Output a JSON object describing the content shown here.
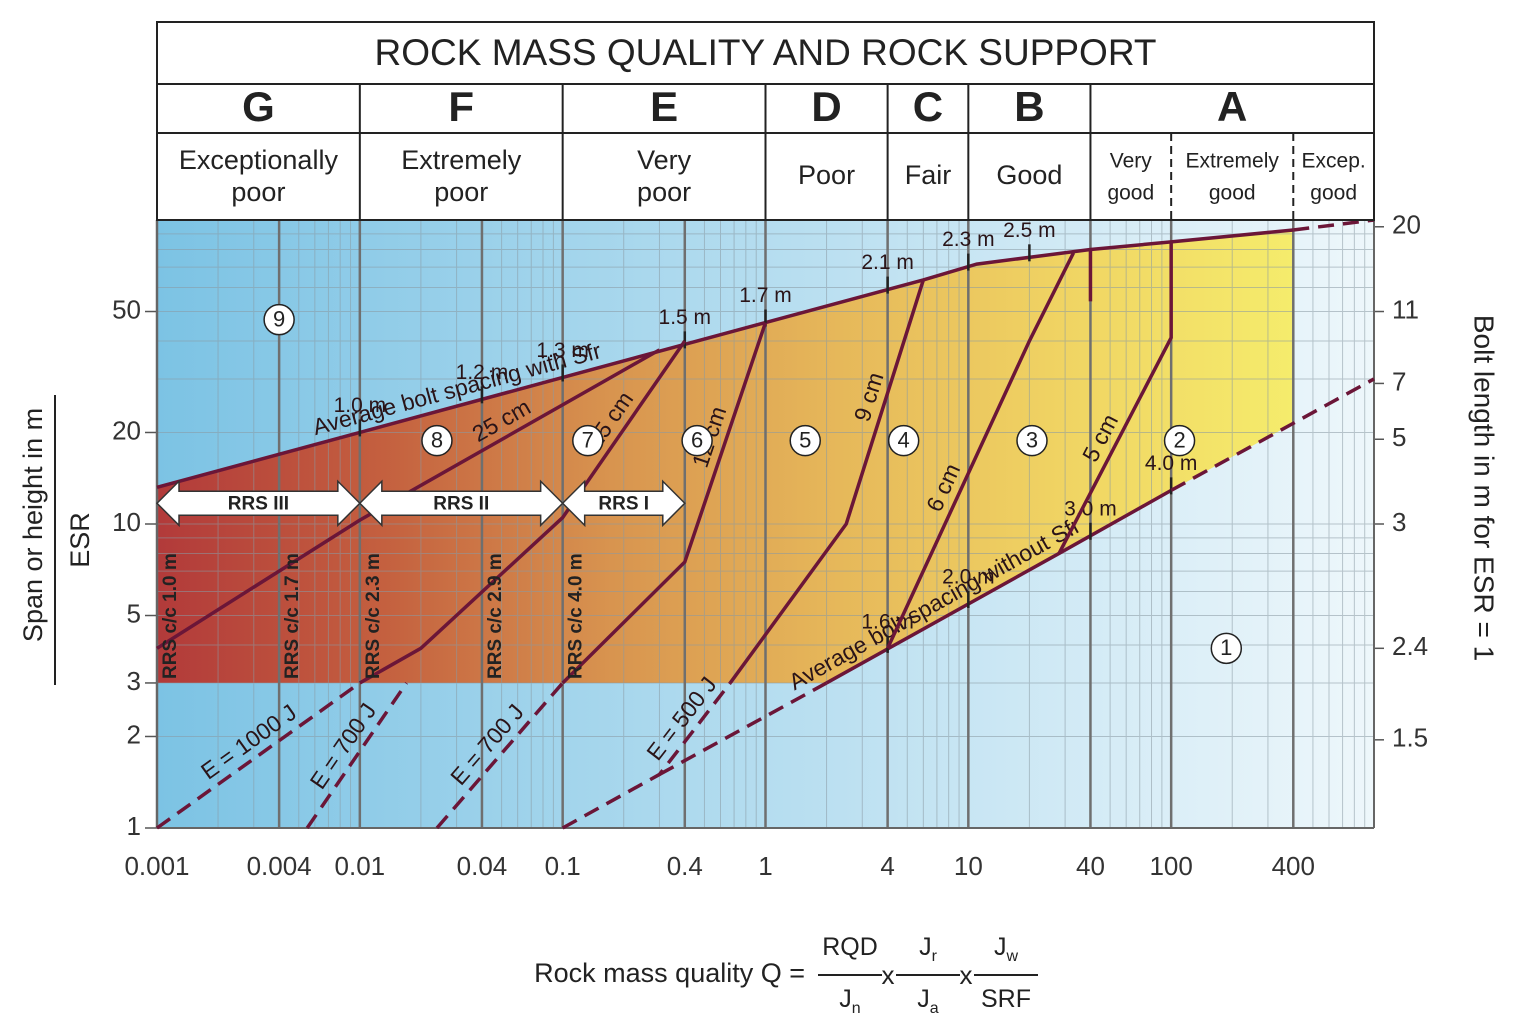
{
  "chart_data": {
    "type": "q-system",
    "title": "ROCK MASS QUALITY AND ROCK SUPPORT",
    "classes": [
      {
        "letter": "G",
        "name": [
          "Exceptionally",
          "poor"
        ],
        "from": 0.001,
        "to": 0.01
      },
      {
        "letter": "F",
        "name": [
          "Extremely",
          "poor"
        ],
        "from": 0.01,
        "to": 0.1
      },
      {
        "letter": "E",
        "name": [
          "Very",
          "poor"
        ],
        "from": 0.1,
        "to": 1
      },
      {
        "letter": "D",
        "name": [
          "Poor"
        ],
        "from": 1,
        "to": 4
      },
      {
        "letter": "C",
        "name": [
          "Fair"
        ],
        "from": 4,
        "to": 10
      },
      {
        "letter": "B",
        "name": [
          "Good"
        ],
        "from": 10,
        "to": 40
      },
      {
        "letter": "A",
        "from": 40,
        "to": 1000,
        "subclasses": [
          {
            "name": [
              "Very",
              "good"
            ],
            "from": 40,
            "to": 100
          },
          {
            "name": [
              "Extremely",
              "good"
            ],
            "from": 100,
            "to": 400
          },
          {
            "name": [
              "Excep.",
              "good"
            ],
            "from": 400,
            "to": 1000
          }
        ]
      }
    ],
    "xlabel": {
      "lead": "Rock mass quality  Q =",
      "times": "x",
      "terms": [
        {
          "num": "RQD",
          "den": "J",
          "den_sub": "n"
        },
        {
          "num": "J",
          "num_sub": "r",
          "den": "J",
          "den_sub": "a"
        },
        {
          "num": "J",
          "num_sub": "w",
          "den": "SRF"
        }
      ]
    },
    "ylabel": [
      "Span or height in m",
      "ESR"
    ],
    "y2label": "Bolt length in m for ESR = 1",
    "xscale": "log",
    "yscale": "log",
    "xlim": [
      0.001,
      1000
    ],
    "ylim": [
      1,
      100
    ],
    "xticks": [
      0.001,
      0.004,
      0.01,
      0.04,
      0.1,
      0.4,
      1,
      4,
      10,
      40,
      100,
      400
    ],
    "yticks": [
      1,
      2,
      3,
      5,
      10,
      20,
      50
    ],
    "y2ticks": [
      {
        "length": 20,
        "span": 95
      },
      {
        "length": 11,
        "span": 50
      },
      {
        "length": 7,
        "span": 29
      },
      {
        "length": 5,
        "span": 19
      },
      {
        "length": 3,
        "span": 10
      },
      {
        "length": 2.4,
        "span": 3.9
      },
      {
        "length": 1.5,
        "span": 1.95
      }
    ],
    "grid": true,
    "support_floor": 3,
    "colors": {
      "background": [
        "#7cc3e4",
        "#eef7fb"
      ],
      "zone": [
        "#b23a3a",
        "#c4603f",
        "#d8944f",
        "#e6b85a",
        "#f0d463",
        "#f5ec6c"
      ],
      "line": "#6b1638"
    },
    "series": [
      {
        "name": "Average bolt spacing with Sfr",
        "x": [
          0.001,
          1,
          6,
          11,
          40,
          100,
          400
        ],
        "y": [
          13.2,
          46,
          63.5,
          71.6,
          80,
          84.7,
          92.7
        ],
        "spacings": [
          {
            "label": "1.0 m",
            "q": 0.01
          },
          {
            "label": "1.2 m",
            "q": 0.04
          },
          {
            "label": "1.3 m",
            "q": 0.1
          },
          {
            "label": "1.5 m",
            "q": 0.4
          },
          {
            "label": "1.7 m",
            "q": 1
          },
          {
            "label": "2.1 m",
            "q": 4
          },
          {
            "label": "2.3 m",
            "q": 10
          },
          {
            "label": "2.5 m",
            "q": 20
          }
        ]
      },
      {
        "x": [
          400,
          1000
        ],
        "y": [
          92.7,
          100
        ],
        "dashed": true
      },
      {
        "x": [
          0.3,
          2
        ],
        "y": [
          1.5,
          3
        ],
        "dashed": true
      },
      {
        "name": "Average bolt spacing without Sfr",
        "x": [
          2,
          28,
          100
        ],
        "y": [
          3,
          8,
          12.9
        ],
        "spacings": [
          {
            "label": "1.6 m",
            "q": 4
          },
          {
            "label": "2.0 m",
            "q": 10
          },
          {
            "label": "3.0 m",
            "q": 40
          },
          {
            "label": "4.0 m",
            "q": 100
          }
        ]
      },
      {
        "x": [
          100,
          1000
        ],
        "y": [
          12.9,
          30
        ],
        "dashed": true
      },
      {
        "name": "25 cm",
        "x": [
          0.001,
          0.01,
          0.3
        ],
        "y": [
          3.9,
          10.3,
          37.4
        ]
      },
      {
        "name": "E = 1000 J",
        "x": [
          0.001,
          0.01
        ],
        "y": [
          1,
          3
        ],
        "dashed": true
      },
      {
        "name": "15 cm",
        "x": [
          0.01,
          0.02,
          0.1,
          0.4
        ],
        "y": [
          3,
          3.9,
          10.5,
          40
        ]
      },
      {
        "name": "E = 700 J",
        "x": [
          0.0055,
          0.017
        ],
        "y": [
          1,
          3
        ],
        "dashed": true
      },
      {
        "name": "E = 700 J",
        "x": [
          0.024,
          0.1
        ],
        "y": [
          1,
          3
        ],
        "dashed": true
      },
      {
        "name": "12 cm",
        "x": [
          0.1,
          0.4,
          1
        ],
        "y": [
          3,
          7.5,
          46
        ]
      },
      {
        "name": "E = 500 J",
        "x": [
          0.1,
          0.3,
          0.67
        ],
        "y": [
          1,
          1.5,
          3
        ],
        "dashed": true
      },
      {
        "name": "9 cm",
        "x": [
          0.67,
          2.5,
          6
        ],
        "y": [
          3,
          10,
          63.5
        ]
      },
      {
        "name": "6 cm",
        "x": [
          4,
          20,
          33
        ],
        "y": [
          3.9,
          40,
          78
        ]
      },
      {
        "x": [
          40,
          40
        ],
        "y": [
          54,
          80
        ]
      },
      {
        "name": "5 cm",
        "x": [
          28,
          100,
          100
        ],
        "y": [
          8,
          41,
          84.7
        ]
      }
    ],
    "zones": [
      {
        "label": 9,
        "q": 0.004,
        "span": 47
      },
      {
        "label": 8,
        "q": 0.024,
        "span": 18.8
      },
      {
        "label": 7,
        "q": 0.133,
        "span": 18.8
      },
      {
        "label": 6,
        "q": 0.46,
        "span": 18.8
      },
      {
        "label": 5,
        "q": 1.57,
        "span": 18.8
      },
      {
        "label": 4,
        "q": 4.8,
        "span": 18.8
      },
      {
        "label": 3,
        "q": 20.6,
        "span": 18.8
      },
      {
        "label": 2,
        "q": 110,
        "span": 18.8
      },
      {
        "label": 1,
        "q": 187,
        "span": 3.9
      }
    ],
    "rrs_spans": [
      {
        "label": "RRS III",
        "from": 0.001,
        "to": 0.01,
        "span": 11.7
      },
      {
        "label": "RRS II",
        "from": 0.01,
        "to": 0.1,
        "span": 11.7
      },
      {
        "label": "RRS I",
        "from": 0.1,
        "to": 0.4,
        "span": 11.7
      }
    ],
    "rrs_spacings": [
      {
        "label": "RRS c/c 1.0 m",
        "q": 0.001
      },
      {
        "label": "RRS c/c 1.7 m",
        "q": 0.004
      },
      {
        "label": "RRS c/c 2.3 m",
        "q": 0.01
      },
      {
        "label": "RRS c/c 2.9 m",
        "q": 0.04
      },
      {
        "label": "RRS c/c 4.0 m",
        "q": 0.1
      }
    ]
  }
}
